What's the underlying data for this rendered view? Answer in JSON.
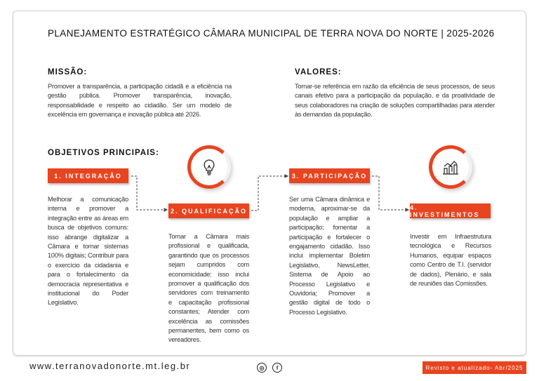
{
  "title": "PLANEJAMENTO ESTRATÉGICO CÂMARA MUNICIPAL DE TERRA NOVA DO NORTE | 2025-2026",
  "missao": {
    "heading": "MISSÃO:",
    "text": "Promover a transparência, a participação cidadã e a eficiência na gestão pública. Promover transparência, inovação, responsabilidade e respeito ao cidadão. Ser um modelo de excelência em governança e inovação pública até 2026."
  },
  "valores": {
    "heading": "VALORES:",
    "text": "Tornar-se referência em razão da eficiência de seus processos, de seus canais efetivo para a participação da população, e da proatividade de seus colaboradores na criação de soluções compartilhadas para atender às demandas da população."
  },
  "objetivos": {
    "heading": "OBJETIVOS PRINCIPAIS:",
    "items": [
      {
        "label": "1. INTEGRAÇÃO",
        "text": "Melhorar a comunicação interna e promover a integração entre as áreas em busca de objetivos comuns: isso abrange digitalizar a Câmara e tornar sistemas 100% digitais; Contribuir para o exercício da cidadania e para o fortalecimento da democracia representativa e institucional do Poder Legislativo."
      },
      {
        "label": "2. QUALIFICAÇÃO",
        "icon": "lightbulb-icon",
        "text": "Tornar a Câmara mais profissional e qualificada, garantindo que os processos sejam cumpridos com economicidade: isso inclui promover a qualificação dos servidores com treinamento e capacitação profissional constantes; Atender com excelência as comissões permanentes, bem como os vereadores."
      },
      {
        "label": "3. PARTICIPAÇÃO",
        "text": "Ser uma Câmara dinâmica e moderna, aproximar-se da população e ampliar a participação; fomentar a participação e fortalecer o engajamento cidadão. Isso inclui implementar Boletim Legislativo, NewsLetter, Sistema de Apoio ao Processo Legislativo e Ouvidoria; Promover a gestão digital de todo o Processo Legislativo."
      },
      {
        "label": "4. INVESTIMENTOS",
        "icon": "bar-chart-icon",
        "text": "Investir em Infraestrutura tecnológica e Recursos Humanos, equipar espaços como Centro de T.I. (servidor de dados), Plenário, e sala de reuniões das Comissões."
      }
    ]
  },
  "footer": {
    "url": "www.terranovadonorte.mt.leg.br",
    "revised": "Revisto e atualizado- Abr/2025",
    "social": [
      "instagram-icon",
      "facebook-icon"
    ]
  },
  "colors": {
    "accent": "#e8441f"
  }
}
